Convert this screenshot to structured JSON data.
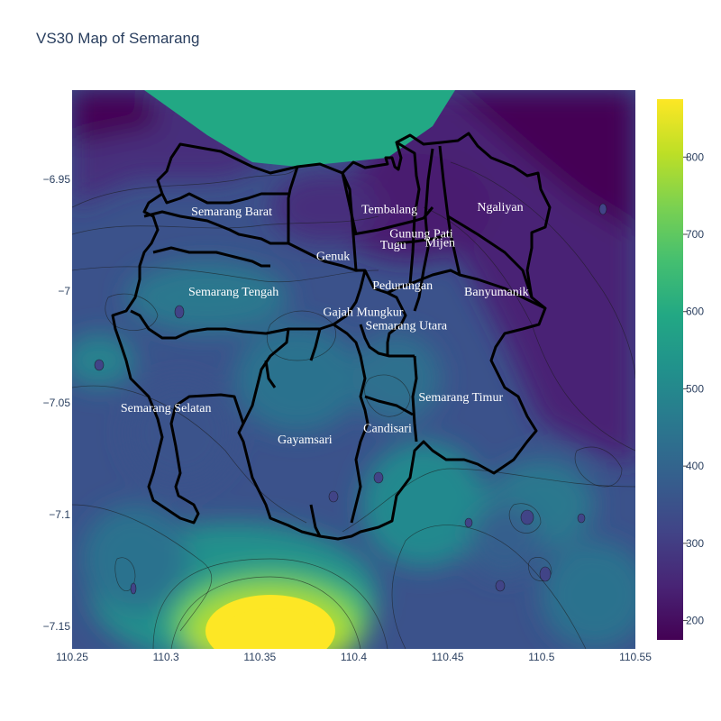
{
  "title": "VS30 Map of Semarang",
  "colors": {
    "scale": [
      "#440154",
      "#482475",
      "#414487",
      "#355f8d",
      "#2a788e",
      "#21918c",
      "#22a884",
      "#44bf70",
      "#7ad151",
      "#bddf26",
      "#fde725"
    ],
    "boundary": "#000000"
  },
  "chart_data": {
    "type": "contour-map",
    "title": "VS30 Map of Semarang",
    "xlim": [
      110.25,
      110.55
    ],
    "ylim": [
      -7.16,
      -6.91
    ],
    "x_ticks": [
      "110.25",
      "110.3",
      "110.35",
      "110.4",
      "110.45",
      "110.5",
      "110.55"
    ],
    "y_ticks": [
      "−6.95",
      "−7",
      "−7.05",
      "−7.1",
      "−7.15"
    ],
    "colorbar": {
      "range": [
        175,
        875
      ],
      "ticks": [
        "200",
        "300",
        "400",
        "500",
        "600",
        "700",
        "800"
      ],
      "colorscale": "viridis"
    },
    "districts": [
      {
        "name": "Semarang Barat",
        "lon": 110.335,
        "lat": -6.964
      },
      {
        "name": "Tembalang",
        "lon": 110.419,
        "lat": -6.963
      },
      {
        "name": "Ngaliyan",
        "lon": 110.478,
        "lat": -6.962
      },
      {
        "name": "Gunung Pati",
        "lon": 110.436,
        "lat": -6.974
      },
      {
        "name": "Tugu",
        "lon": 110.421,
        "lat": -6.979
      },
      {
        "name": "Mijen",
        "lon": 110.446,
        "lat": -6.978
      },
      {
        "name": "Genuk",
        "lon": 110.389,
        "lat": -6.984
      },
      {
        "name": "Pedurungan",
        "lon": 110.426,
        "lat": -6.997
      },
      {
        "name": "Banyumanik",
        "lon": 110.476,
        "lat": -7.0
      },
      {
        "name": "Semarang Tengah",
        "lon": 110.336,
        "lat": -7.0
      },
      {
        "name": "Gajah Mungkur",
        "lon": 110.405,
        "lat": -7.009
      },
      {
        "name": "Semarang Utara",
        "lon": 110.428,
        "lat": -7.015
      },
      {
        "name": "Semarang Timur",
        "lon": 110.457,
        "lat": -7.047
      },
      {
        "name": "Semarang Selatan",
        "lon": 110.3,
        "lat": -7.052
      },
      {
        "name": "Candisari",
        "lon": 110.418,
        "lat": -7.061
      },
      {
        "name": "Gayamsari",
        "lon": 110.374,
        "lat": -7.066
      }
    ]
  }
}
